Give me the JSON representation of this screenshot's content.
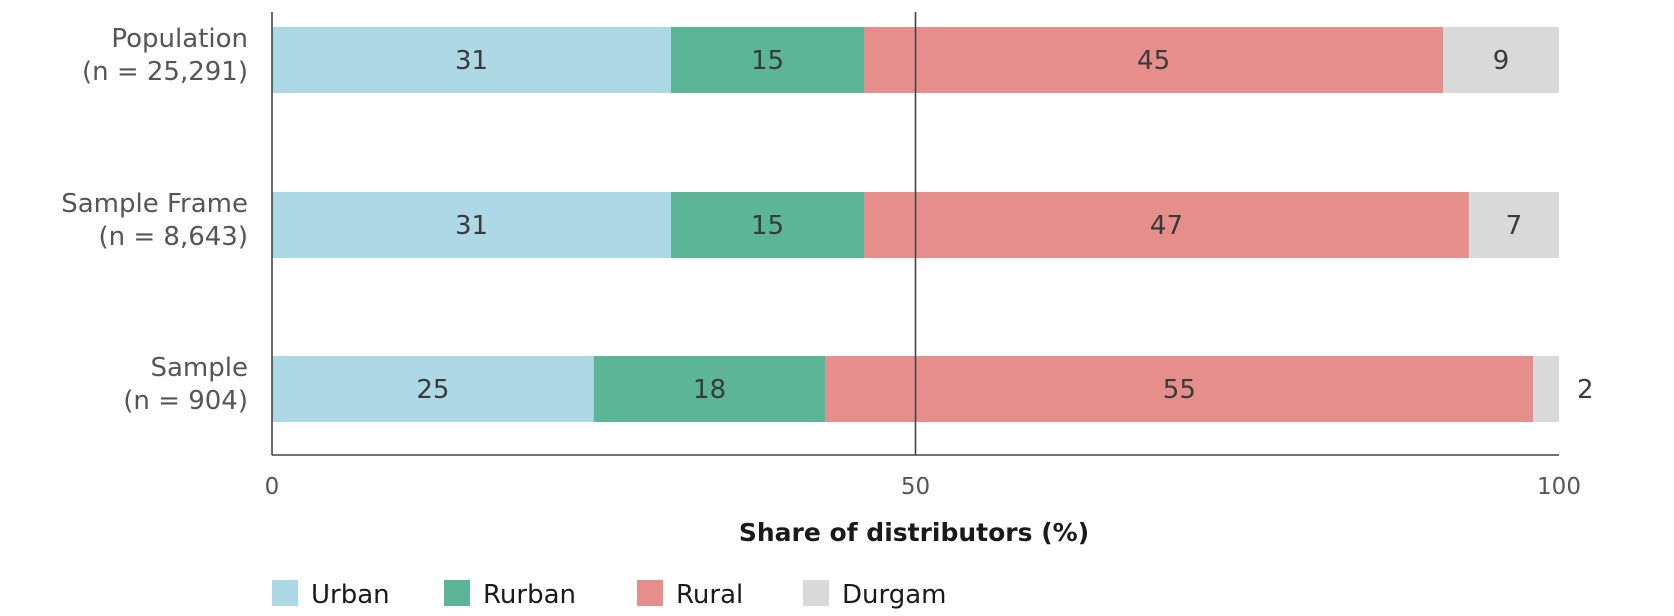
{
  "chart_data": {
    "type": "bar",
    "orientation": "horizontal",
    "stacked": true,
    "title": "",
    "xlabel": "Share of distributors (%)",
    "ylabel": "",
    "xlim": [
      0,
      100
    ],
    "xticks": [
      0,
      50,
      100
    ],
    "reference_line": 50,
    "grid": false,
    "legend_position": "bottom-left",
    "categories": [
      [
        "Population",
        "(n = 25,291)"
      ],
      [
        "Sample Frame",
        "(n = 8,643)"
      ],
      [
        "Sample",
        "(n = 904)"
      ]
    ],
    "series": [
      {
        "name": "Urban",
        "color": "#add8e6",
        "values": [
          31,
          31,
          25
        ]
      },
      {
        "name": "Rurban",
        "color": "#5bb596",
        "values": [
          15,
          15,
          18
        ]
      },
      {
        "name": "Rural",
        "color": "#e68e8c",
        "values": [
          45,
          47,
          55
        ]
      },
      {
        "name": "Durgam",
        "color": "#d9d9d9",
        "values": [
          9,
          7,
          2
        ]
      }
    ]
  }
}
